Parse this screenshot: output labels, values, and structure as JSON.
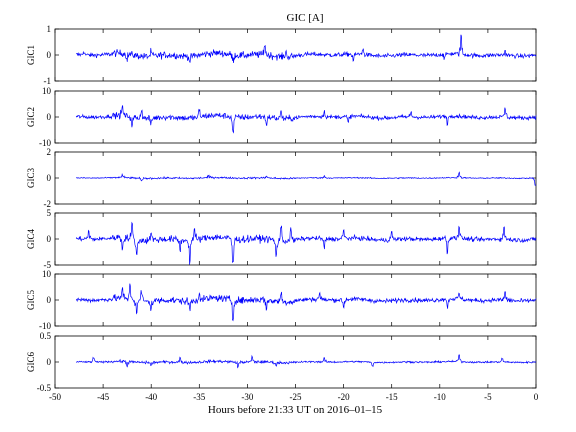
{
  "chart_data": {
    "type": "line",
    "title": "GIC [A]",
    "xlabel": "Hours before  21:33 UT on 2016–01–15",
    "xlim": [
      -50,
      0
    ],
    "xticks": [
      "-50",
      "-45",
      "-40",
      "-35",
      "-30",
      "-25",
      "-20",
      "-15",
      "-10",
      "-5",
      "0"
    ],
    "series_color": "#0000ff",
    "panels": [
      {
        "ylabel": "GIC1",
        "ylim": [
          -1,
          1
        ],
        "yticks": [
          "-1",
          "0",
          "1"
        ],
        "amp": 0.08,
        "spikes": [
          [
            -47,
            0.12
          ],
          [
            -42.5,
            -0.22
          ],
          [
            -40,
            0.18
          ],
          [
            -36,
            -0.2
          ],
          [
            -31.5,
            -0.2
          ],
          [
            -28.2,
            0.35
          ],
          [
            -26,
            0.2
          ],
          [
            -19,
            -0.25
          ],
          [
            -18,
            0.18
          ],
          [
            -9.5,
            -0.15
          ],
          [
            -7.8,
            0.72
          ],
          [
            -3.2,
            0.15
          ]
        ]
      },
      {
        "ylabel": "GIC2",
        "ylim": [
          -10,
          10
        ],
        "yticks": [
          "-10",
          "0",
          "10"
        ],
        "amp": 0.7,
        "spikes": [
          [
            -43,
            3.5
          ],
          [
            -42,
            -3.8
          ],
          [
            -41,
            2.8
          ],
          [
            -40,
            -2.5
          ],
          [
            -35,
            2.2
          ],
          [
            -31.5,
            -5.5
          ],
          [
            -28,
            -3
          ],
          [
            -26.5,
            2.5
          ],
          [
            -22,
            2
          ],
          [
            -19.5,
            -2.5
          ],
          [
            -13,
            2
          ],
          [
            -9.2,
            -2.8
          ],
          [
            -3.2,
            3.5
          ]
        ]
      },
      {
        "ylabel": "GIC3",
        "ylim": [
          -2,
          2
        ],
        "yticks": [
          "-2",
          "0",
          "2"
        ],
        "amp": 0.04,
        "spikes": [
          [
            -43,
            0.2
          ],
          [
            -41,
            -0.2
          ],
          [
            -34,
            0.15
          ],
          [
            -28,
            0.18
          ],
          [
            -22,
            0.15
          ],
          [
            -8,
            0.4
          ],
          [
            -0.05,
            -0.55
          ]
        ]
      },
      {
        "ylabel": "GIC4",
        "ylim": [
          -5,
          5
        ],
        "yticks": [
          "-5",
          "0",
          "5"
        ],
        "amp": 0.4,
        "spikes": [
          [
            -46.5,
            1.5
          ],
          [
            -43,
            -2.2
          ],
          [
            -42,
            2.8
          ],
          [
            -41.5,
            -3.2
          ],
          [
            -40,
            1.8
          ],
          [
            -37,
            -1.8
          ],
          [
            -36,
            -4.2
          ],
          [
            -35.5,
            2
          ],
          [
            -31.5,
            -4.5
          ],
          [
            -27,
            -3.2
          ],
          [
            -26.5,
            2.3
          ],
          [
            -25.5,
            1.8
          ],
          [
            -22,
            -1.8
          ],
          [
            -20,
            1.5
          ],
          [
            -15,
            1.5
          ],
          [
            -9.2,
            -2.8
          ],
          [
            -8,
            2.2
          ],
          [
            -3.3,
            2.3
          ]
        ]
      },
      {
        "ylabel": "GIC5",
        "ylim": [
          -10,
          10
        ],
        "yticks": [
          "-10",
          "0",
          "10"
        ],
        "amp": 0.8,
        "spikes": [
          [
            -43,
            3.5
          ],
          [
            -42.2,
            5.8
          ],
          [
            -41.5,
            -4.5
          ],
          [
            -41,
            3.5
          ],
          [
            -40,
            -3
          ],
          [
            -36,
            -3.2
          ],
          [
            -35,
            2.5
          ],
          [
            -31.5,
            -6.8
          ],
          [
            -28,
            -3.5
          ],
          [
            -26.5,
            3
          ],
          [
            -22.5,
            2.5
          ],
          [
            -20,
            -3
          ],
          [
            -9.2,
            -3.2
          ],
          [
            -8,
            2.2
          ],
          [
            -3.2,
            3
          ]
        ]
      },
      {
        "ylabel": "GIC6",
        "ylim": [
          -0.5,
          0.5
        ],
        "yticks": [
          "-0.5",
          "0",
          "0.5"
        ],
        "amp": 0.015,
        "spikes": [
          [
            -46,
            0.08
          ],
          [
            -42.5,
            -0.08
          ],
          [
            -40,
            -0.06
          ],
          [
            -37,
            0.08
          ],
          [
            -31,
            -0.09
          ],
          [
            -29.5,
            0.09
          ],
          [
            -27,
            -0.06
          ],
          [
            -22,
            0.07
          ],
          [
            -17,
            -0.07
          ],
          [
            -8,
            0.13
          ],
          [
            -3.5,
            0.06
          ]
        ]
      }
    ]
  }
}
